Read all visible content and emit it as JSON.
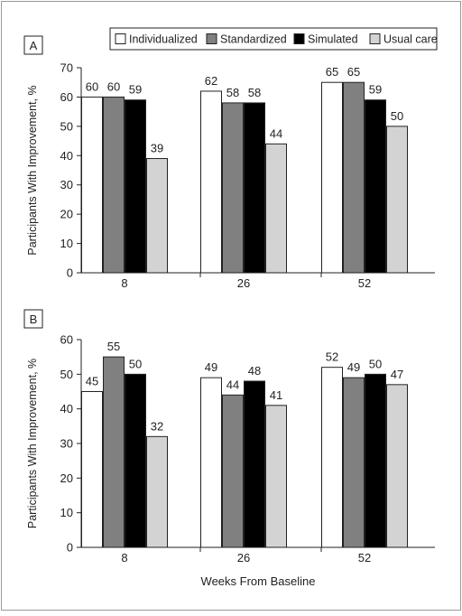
{
  "chart_data": [
    {
      "type": "bar",
      "panel_label": "A",
      "categories": [
        "8",
        "26",
        "52"
      ],
      "series": [
        {
          "name": "Individualized",
          "values": [
            60,
            62,
            65
          ]
        },
        {
          "name": "Standardized",
          "values": [
            60,
            58,
            65
          ]
        },
        {
          "name": "Simulated",
          "values": [
            59,
            58,
            59
          ]
        },
        {
          "name": "Usual care",
          "values": [
            39,
            44,
            50
          ]
        }
      ],
      "ylabel": "Participants With Improvement, %",
      "xlabel": "",
      "ylim": [
        0,
        70
      ],
      "yticks": [
        0,
        10,
        20,
        30,
        40,
        50,
        60,
        70
      ],
      "legend_position": "top-right",
      "grid": false
    },
    {
      "type": "bar",
      "panel_label": "B",
      "categories": [
        "8",
        "26",
        "52"
      ],
      "series": [
        {
          "name": "Individualized",
          "values": [
            45,
            49,
            52
          ]
        },
        {
          "name": "Standardized",
          "values": [
            55,
            44,
            49
          ]
        },
        {
          "name": "Simulated",
          "values": [
            50,
            48,
            50
          ]
        },
        {
          "name": "Usual care",
          "values": [
            32,
            41,
            47
          ]
        }
      ],
      "ylabel": "Participants With Improvement, %",
      "xlabel": "Weeks From Baseline",
      "ylim": [
        0,
        60
      ],
      "yticks": [
        0,
        10,
        20,
        30,
        40,
        50,
        60
      ],
      "grid": false
    }
  ],
  "colors": {
    "Individualized": "#ffffff",
    "Standardized": "#808080",
    "Simulated": "#000000",
    "Usual care": "#d3d3d3",
    "outline": "#222222",
    "frame": "#999999"
  }
}
